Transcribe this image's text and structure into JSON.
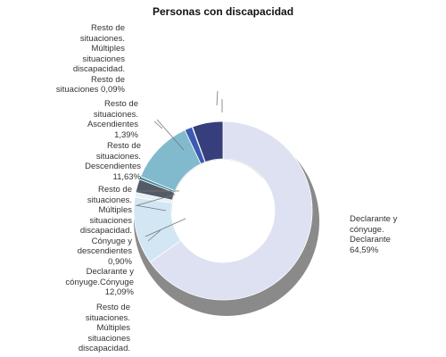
{
  "chart_data": {
    "type": "pie",
    "title": "Personas con discapacidad",
    "variant": "donut",
    "slices": [
      {
        "label": "Declarante y cónyuge. Declarante",
        "value": 64.59,
        "color": "#dde1f1"
      },
      {
        "label": "Declarante y cónyuge.Cónyuge",
        "value": 12.09,
        "color": "#d3e6f3"
      },
      {
        "label": "Cónyuge y descendientes",
        "value": 0.9,
        "color": "#e6f0f5"
      },
      {
        "label": "Resto de situaciones. Múltiples situaciones discapacidad.",
        "value": 2.4,
        "color": "#545b66"
      },
      {
        "label": "Resto de situaciones. Múltiples situaciones discapacidad.",
        "value": 0.5,
        "color": "#3f8a9c"
      },
      {
        "label": "Resto de situaciones. Descendientes",
        "value": 11.63,
        "color": "#82bacd"
      },
      {
        "label": "Resto de situaciones. Ascendientes",
        "value": 1.39,
        "color": "#3a5ab3"
      },
      {
        "label": "Resto de situaciones",
        "value": 0.09,
        "color": "#2f3d75"
      },
      {
        "label": "Resto de situaciones. Múltiples situaciones discapacidad.",
        "value": 5.5,
        "color": "#363f7b"
      }
    ],
    "labels": [
      {
        "text": "Declarante y\ncónyuge.\nDeclarante 64,59%",
        "align": "left"
      },
      {
        "text": "Resto de\nsituaciones.\nMúltiples\nsituaciones\ndiscapacidad.\nResto de\nsituaciones 0,09%",
        "align": "right"
      },
      {
        "text": "Resto de\nsituaciones.\nAscendientes\n1,39%",
        "align": "right"
      },
      {
        "text": "Resto de\nsituaciones.\nDescendientes\n11,63%",
        "align": "right"
      },
      {
        "text": "Resto de\nsituaciones.\nMúltiples\nsituaciones\ndiscapacidad.\nCónyuge y\ndescendientes\n0,90%",
        "align": "right"
      },
      {
        "text": "Declarante y\ncónyuge.Cónyuge\n12,09%",
        "align": "right"
      },
      {
        "text": "Resto de\nsituaciones.\nMúltiples\nsituaciones\ndiscapacidad.",
        "align": "right"
      }
    ]
  }
}
